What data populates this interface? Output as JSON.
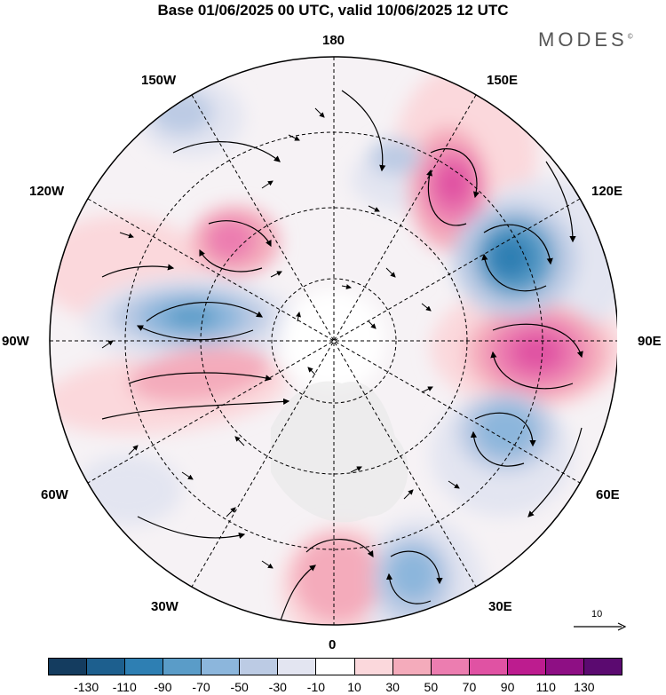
{
  "title": "Base 01/06/2025 00 UTC, valid 10/06/2025 12 UTC",
  "brand": "MODES",
  "brand_mark": "©",
  "map": {
    "projection": "north-polar-stereographic",
    "longitude_labels": {
      "top": "180",
      "bottom": "0",
      "left": "90W",
      "right": "90E",
      "upper_left_1": "150W",
      "upper_left_2": "120W",
      "lower_left_1": "60W",
      "lower_left_2": "30W",
      "upper_right_1": "150E",
      "upper_right_2": "120E",
      "lower_right_1": "60E",
      "lower_right_2": "30E"
    },
    "reference_vector_label": "10"
  },
  "colorbar": {
    "colors": [
      "#143c5f",
      "#1d5f8e",
      "#2e7fb3",
      "#5a9cc8",
      "#8cb6dc",
      "#bccbe4",
      "#e3e5f1",
      "#ffffff",
      "#fbd8dc",
      "#f4abbb",
      "#ec7db0",
      "#e052a3",
      "#bd1c8f",
      "#8e0f84",
      "#5b0a70"
    ],
    "tick_labels": [
      "-130",
      "-110",
      "-90",
      "-70",
      "-50",
      "-30",
      "-10",
      "10",
      "30",
      "50",
      "70",
      "90",
      "110",
      "130"
    ]
  }
}
